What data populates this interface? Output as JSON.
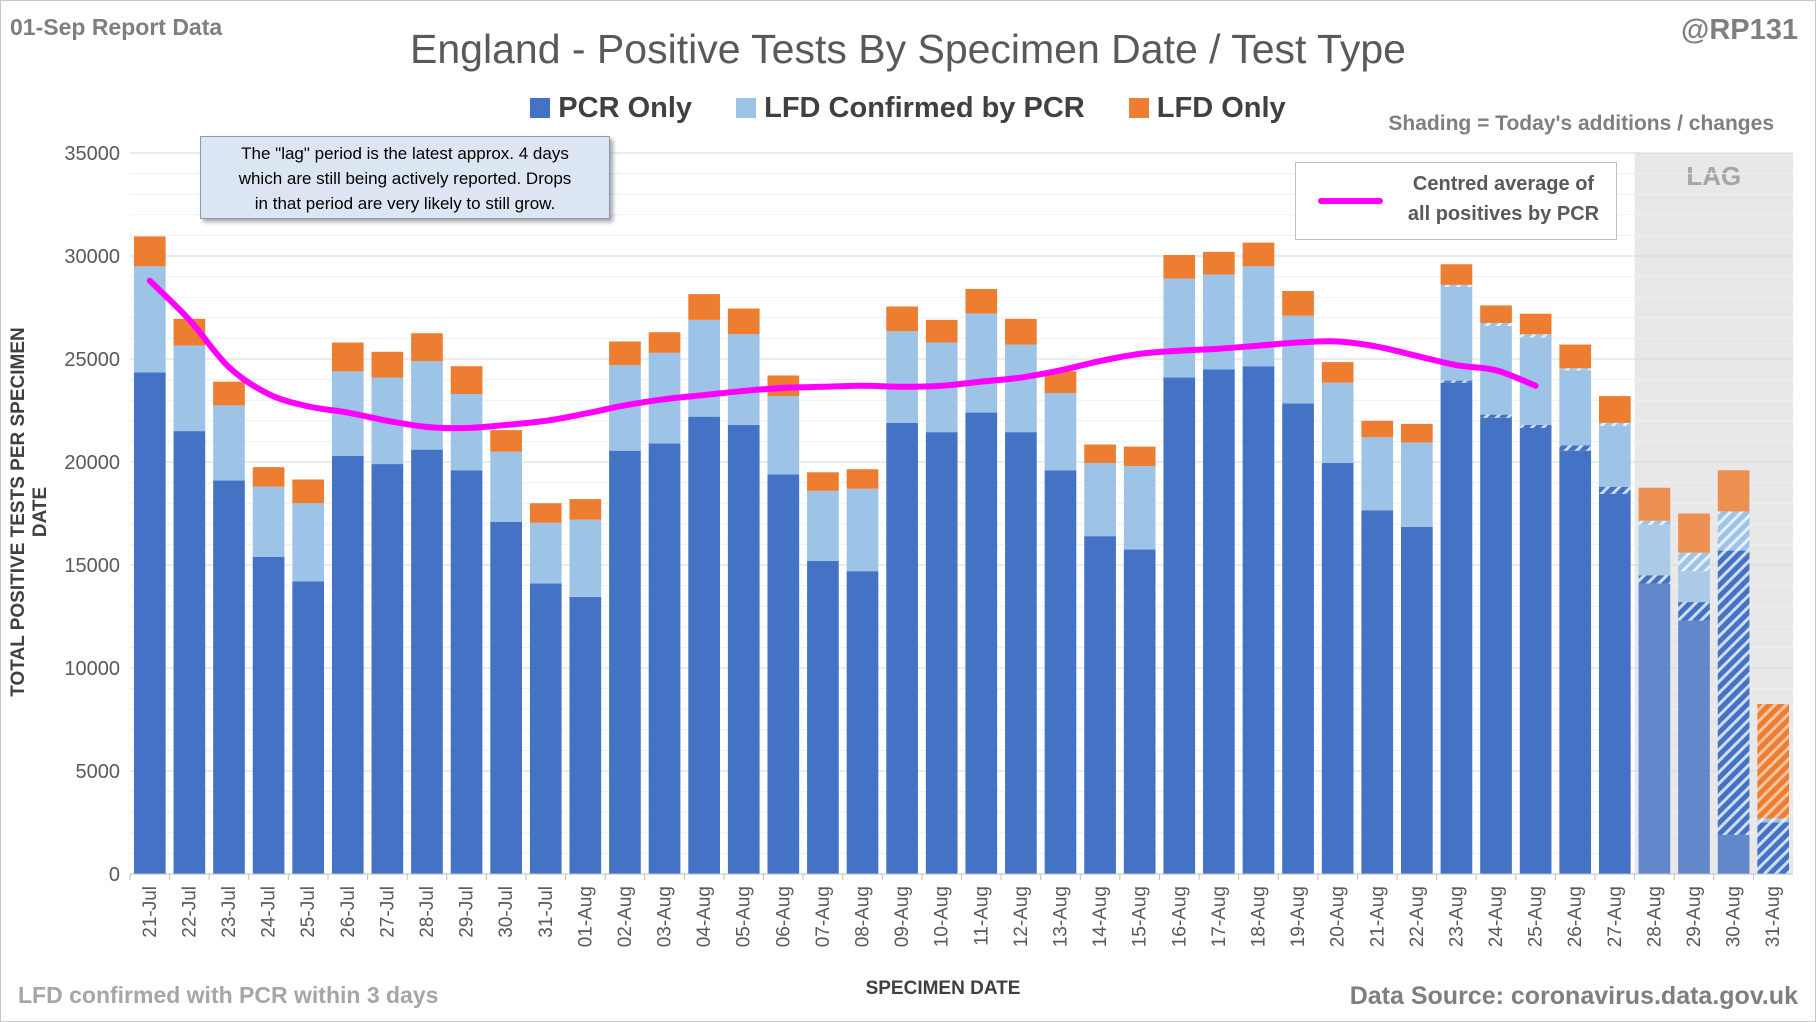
{
  "header": {
    "report_label": "01-Sep Report Data",
    "handle": "@RP131",
    "shading_note": "Shading = Today's additions / changes"
  },
  "annotation": {
    "line1": "The \"lag\" period is the latest approx. 4 days",
    "line2": "which are still being actively reported.  Drops",
    "line3": "in that period are very likely to still grow."
  },
  "average_legend": {
    "line1": "Centred average of",
    "line2": "all positives by PCR",
    "color": "#ff00ff"
  },
  "footer": {
    "left": "LFD confirmed with PCR within 3 days",
    "right": "Data Source: coronavirus.data.gov.uk"
  },
  "chart_data": {
    "type": "bar",
    "stacked": true,
    "title": "England - Positive Tests By Specimen Date / Test Type",
    "xlabel": "SPECIMEN DATE",
    "ylabel": "TOTAL POSITIVE TESTS PER SPECIMEN DATE",
    "ylim": [
      0,
      35000
    ],
    "yticks": [
      0,
      5000,
      10000,
      15000,
      20000,
      25000,
      30000,
      35000
    ],
    "grid": true,
    "legend_position": "top",
    "lag_region": {
      "label": "LAG",
      "start": "28-Aug",
      "end": "31-Aug",
      "color": "#e8e8e8"
    },
    "categories": [
      "21-Jul",
      "22-Jul",
      "23-Jul",
      "24-Jul",
      "25-Jul",
      "26-Jul",
      "27-Jul",
      "28-Jul",
      "29-Jul",
      "30-Jul",
      "31-Jul",
      "01-Aug",
      "02-Aug",
      "03-Aug",
      "04-Aug",
      "05-Aug",
      "06-Aug",
      "07-Aug",
      "08-Aug",
      "09-Aug",
      "10-Aug",
      "11-Aug",
      "12-Aug",
      "13-Aug",
      "14-Aug",
      "15-Aug",
      "16-Aug",
      "17-Aug",
      "18-Aug",
      "19-Aug",
      "20-Aug",
      "21-Aug",
      "22-Aug",
      "23-Aug",
      "24-Aug",
      "25-Aug",
      "26-Aug",
      "27-Aug",
      "28-Aug",
      "29-Aug",
      "30-Aug",
      "31-Aug"
    ],
    "series": [
      {
        "name": "PCR Only",
        "color": "#4472c4",
        "values": [
          24350,
          21500,
          19100,
          15400,
          14200,
          20300,
          19900,
          20600,
          19600,
          17100,
          14100,
          13450,
          20550,
          20900,
          22200,
          21800,
          19400,
          15200,
          14700,
          21900,
          21450,
          22400,
          21450,
          19600,
          16400,
          15750,
          24100,
          24500,
          24650,
          22850,
          19950,
          17650,
          16850,
          23850,
          22150,
          21650,
          20550,
          18450,
          14100,
          12300,
          1900,
          0
        ]
      },
      {
        "name": "PCR Only (today's additions)",
        "color": "#4472c4",
        "hatched": true,
        "values": [
          0,
          0,
          0,
          0,
          0,
          0,
          0,
          0,
          0,
          0,
          0,
          0,
          0,
          0,
          0,
          0,
          0,
          0,
          0,
          0,
          0,
          0,
          0,
          0,
          0,
          0,
          0,
          0,
          0,
          0,
          0,
          0,
          0,
          100,
          150,
          150,
          250,
          350,
          400,
          900,
          13800,
          2500
        ]
      },
      {
        "name": "LFD Confirmed by PCR",
        "color": "#9dc3e6",
        "values": [
          5150,
          4150,
          3650,
          3400,
          3800,
          4100,
          4200,
          4300,
          3700,
          3400,
          2950,
          3750,
          4150,
          4400,
          4700,
          4400,
          3800,
          3400,
          4000,
          4450,
          4350,
          4800,
          4250,
          3750,
          3550,
          4050,
          4800,
          4600,
          4850,
          4250,
          3900,
          3550,
          4100,
          4550,
          4300,
          4250,
          3650,
          2950,
          2450,
          1500,
          0,
          0
        ]
      },
      {
        "name": "LFD Confirmed by PCR (today's additions)",
        "color": "#9dc3e6",
        "hatched": true,
        "values": [
          0,
          0,
          0,
          0,
          0,
          0,
          0,
          0,
          0,
          0,
          0,
          0,
          0,
          0,
          0,
          0,
          0,
          0,
          0,
          0,
          0,
          0,
          0,
          0,
          0,
          0,
          0,
          0,
          0,
          0,
          0,
          0,
          0,
          100,
          150,
          150,
          100,
          150,
          200,
          900,
          1900,
          200
        ]
      },
      {
        "name": "LFD Only",
        "color": "#ed7d31",
        "values": [
          1450,
          1300,
          1150,
          950,
          1150,
          1400,
          1250,
          1350,
          1350,
          1050,
          950,
          1000,
          1150,
          1000,
          1250,
          1250,
          1000,
          900,
          950,
          1200,
          1100,
          1200,
          1250,
          1050,
          900,
          950,
          1150,
          1100,
          1150,
          1200,
          1000,
          800,
          900,
          1000,
          850,
          1000,
          1150,
          1300,
          1600,
          1900,
          2000,
          0
        ]
      },
      {
        "name": "LFD Only (today's additions)",
        "color": "#ed7d31",
        "hatched": true,
        "values": [
          0,
          0,
          0,
          0,
          0,
          0,
          0,
          0,
          0,
          0,
          0,
          0,
          0,
          0,
          0,
          0,
          0,
          0,
          0,
          0,
          0,
          0,
          0,
          0,
          0,
          0,
          0,
          0,
          0,
          0,
          0,
          0,
          0,
          0,
          0,
          0,
          0,
          0,
          0,
          0,
          0,
          5550
        ]
      }
    ],
    "legend": [
      {
        "name": "PCR Only",
        "color": "#4472c4"
      },
      {
        "name": "LFD Confirmed by PCR",
        "color": "#9dc3e6"
      },
      {
        "name": "LFD Only",
        "color": "#ed7d31"
      }
    ],
    "average_line": {
      "name": "Centred average of all positives by PCR",
      "color": "#ff00ff",
      "values": [
        28800,
        26900,
        24600,
        23300,
        22700,
        22400,
        22000,
        21700,
        21650,
        21800,
        22000,
        22350,
        22750,
        23050,
        23250,
        23450,
        23600,
        23650,
        23700,
        23650,
        23700,
        23900,
        24100,
        24450,
        24900,
        25250,
        25400,
        25500,
        25650,
        25800,
        25850,
        25600,
        25150,
        24700,
        24450,
        23700
      ]
    }
  }
}
